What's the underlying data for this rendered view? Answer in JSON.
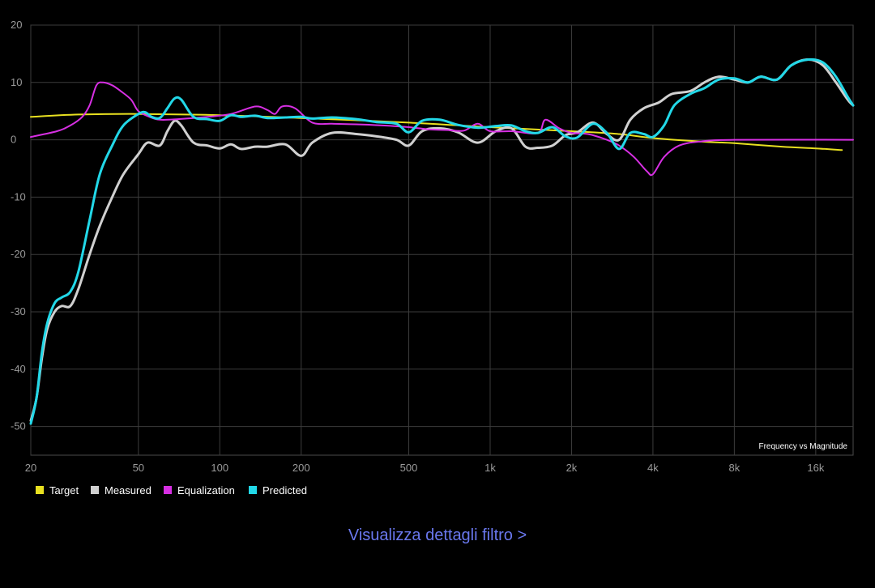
{
  "chart_data": {
    "type": "line",
    "annotation": "Frequency vs Magnitude",
    "x_scale": "log",
    "xlim": [
      20,
      22000
    ],
    "ylim": [
      -55,
      20
    ],
    "x_ticks": [
      {
        "value": 20,
        "label": "20"
      },
      {
        "value": 50,
        "label": "50"
      },
      {
        "value": 100,
        "label": "100"
      },
      {
        "value": 200,
        "label": "200"
      },
      {
        "value": 500,
        "label": "500"
      },
      {
        "value": 1000,
        "label": "1k"
      },
      {
        "value": 2000,
        "label": "2k"
      },
      {
        "value": 4000,
        "label": "4k"
      },
      {
        "value": 8000,
        "label": "8k"
      },
      {
        "value": 16000,
        "label": "16k"
      }
    ],
    "y_ticks": [
      {
        "value": 20,
        "label": "20"
      },
      {
        "value": 10,
        "label": "10"
      },
      {
        "value": 0,
        "label": "0"
      },
      {
        "value": -10,
        "label": "-10"
      },
      {
        "value": -20,
        "label": "-20"
      },
      {
        "value": -30,
        "label": "-30"
      },
      {
        "value": -40,
        "label": "-40"
      },
      {
        "value": -50,
        "label": "-50"
      }
    ],
    "grid": true,
    "legend_position": "bottom-left",
    "series": [
      {
        "name": "Target",
        "color": "#e8e020",
        "points": [
          [
            20,
            4.0
          ],
          [
            30,
            4.4
          ],
          [
            50,
            4.5
          ],
          [
            100,
            4.3
          ],
          [
            200,
            3.8
          ],
          [
            500,
            3.0
          ],
          [
            1000,
            2.2
          ],
          [
            2000,
            1.5
          ],
          [
            3000,
            1.0
          ],
          [
            4000,
            0.3
          ],
          [
            6000,
            -0.3
          ],
          [
            8000,
            -0.6
          ],
          [
            12000,
            -1.2
          ],
          [
            16000,
            -1.5
          ],
          [
            20000,
            -1.8
          ]
        ]
      },
      {
        "name": "Measured",
        "color": "#d0d0d0",
        "points": [
          [
            20,
            -49
          ],
          [
            21,
            -45
          ],
          [
            22,
            -38
          ],
          [
            23,
            -33
          ],
          [
            24.5,
            -30
          ],
          [
            26,
            -29
          ],
          [
            28,
            -29
          ],
          [
            30,
            -26
          ],
          [
            33,
            -20
          ],
          [
            36,
            -15
          ],
          [
            40,
            -10
          ],
          [
            44,
            -6
          ],
          [
            50,
            -2.5
          ],
          [
            54,
            -0.5
          ],
          [
            60,
            -1
          ],
          [
            64,
            1.5
          ],
          [
            68,
            3.3
          ],
          [
            72,
            2.5
          ],
          [
            80,
            -0.5
          ],
          [
            90,
            -1
          ],
          [
            100,
            -1.5
          ],
          [
            110,
            -0.8
          ],
          [
            120,
            -1.6
          ],
          [
            135,
            -1.2
          ],
          [
            150,
            -1.2
          ],
          [
            175,
            -0.8
          ],
          [
            200,
            -2.8
          ],
          [
            220,
            -0.5
          ],
          [
            260,
            1.2
          ],
          [
            320,
            1
          ],
          [
            380,
            0.6
          ],
          [
            450,
            0
          ],
          [
            500,
            -1
          ],
          [
            560,
            1.5
          ],
          [
            650,
            2
          ],
          [
            760,
            1.3
          ],
          [
            900,
            -0.5
          ],
          [
            1050,
            1.5
          ],
          [
            1200,
            2
          ],
          [
            1350,
            -1.2
          ],
          [
            1500,
            -1.4
          ],
          [
            1700,
            -1
          ],
          [
            1900,
            0.8
          ],
          [
            2100,
            1.3
          ],
          [
            2400,
            3
          ],
          [
            2700,
            1
          ],
          [
            3000,
            0
          ],
          [
            3300,
            3.5
          ],
          [
            3700,
            5.5
          ],
          [
            4200,
            6.5
          ],
          [
            4700,
            8.0
          ],
          [
            5500,
            8.5
          ],
          [
            6200,
            10
          ],
          [
            7000,
            11
          ],
          [
            8000,
            10.5
          ],
          [
            9000,
            10
          ],
          [
            10000,
            11
          ],
          [
            11500,
            10.5
          ],
          [
            13000,
            13
          ],
          [
            15000,
            14
          ],
          [
            17000,
            13
          ],
          [
            19000,
            10
          ],
          [
            21000,
            7
          ],
          [
            22000,
            6
          ]
        ]
      },
      {
        "name": "Equalization",
        "color": "#d72fe3",
        "points": [
          [
            20,
            0.5
          ],
          [
            25,
            1.5
          ],
          [
            28,
            2.5
          ],
          [
            31,
            4
          ],
          [
            33,
            6
          ],
          [
            35,
            9.5
          ],
          [
            37,
            10
          ],
          [
            40,
            9.5
          ],
          [
            43,
            8.5
          ],
          [
            47,
            7
          ],
          [
            50,
            5
          ],
          [
            55,
            4
          ],
          [
            60,
            3.5
          ],
          [
            70,
            3.6
          ],
          [
            90,
            4
          ],
          [
            110,
            4.5
          ],
          [
            135,
            5.8
          ],
          [
            150,
            5.2
          ],
          [
            160,
            4.5
          ],
          [
            170,
            5.8
          ],
          [
            190,
            5.5
          ],
          [
            220,
            3
          ],
          [
            260,
            2.8
          ],
          [
            320,
            2.7
          ],
          [
            400,
            2.5
          ],
          [
            500,
            2.2
          ],
          [
            600,
            1.8
          ],
          [
            700,
            1.7
          ],
          [
            800,
            1.6
          ],
          [
            900,
            2.8
          ],
          [
            1000,
            1.5
          ],
          [
            1200,
            1.5
          ],
          [
            1500,
            1.2
          ],
          [
            1600,
            3.5
          ],
          [
            1800,
            2
          ],
          [
            2000,
            1.2
          ],
          [
            2300,
            1
          ],
          [
            2700,
            0
          ],
          [
            3000,
            -1
          ],
          [
            3400,
            -3
          ],
          [
            3800,
            -5.5
          ],
          [
            4000,
            -6
          ],
          [
            4400,
            -3
          ],
          [
            5000,
            -1
          ],
          [
            6000,
            -0.3
          ],
          [
            8000,
            0
          ],
          [
            22000,
            0
          ]
        ]
      },
      {
        "name": "Predicted",
        "color": "#22d8e8",
        "points": [
          [
            20,
            -49.5
          ],
          [
            21,
            -45
          ],
          [
            22,
            -37
          ],
          [
            23,
            -32
          ],
          [
            24.5,
            -28.5
          ],
          [
            26,
            -27.5
          ],
          [
            28,
            -26.5
          ],
          [
            30,
            -23
          ],
          [
            33,
            -14
          ],
          [
            36,
            -6
          ],
          [
            40,
            -1
          ],
          [
            44,
            2.5
          ],
          [
            50,
            4.5
          ],
          [
            53,
            4.8
          ],
          [
            56,
            4
          ],
          [
            60,
            3.8
          ],
          [
            64,
            5.5
          ],
          [
            68,
            7.2
          ],
          [
            72,
            7
          ],
          [
            80,
            4
          ],
          [
            90,
            3.6
          ],
          [
            100,
            3.3
          ],
          [
            110,
            4.3
          ],
          [
            120,
            4
          ],
          [
            135,
            4.2
          ],
          [
            150,
            3.8
          ],
          [
            175,
            3.9
          ],
          [
            200,
            4
          ],
          [
            220,
            3.7
          ],
          [
            260,
            3.9
          ],
          [
            320,
            3.6
          ],
          [
            380,
            3.1
          ],
          [
            450,
            2.8
          ],
          [
            500,
            1.3
          ],
          [
            560,
            3.3
          ],
          [
            650,
            3.5
          ],
          [
            760,
            2.6
          ],
          [
            900,
            2.1
          ],
          [
            1050,
            2.4
          ],
          [
            1200,
            2.5
          ],
          [
            1350,
            1.5
          ],
          [
            1500,
            1.2
          ],
          [
            1700,
            2.2
          ],
          [
            1900,
            0.6
          ],
          [
            2100,
            0.4
          ],
          [
            2400,
            2.8
          ],
          [
            2700,
            1.2
          ],
          [
            3000,
            -1.6
          ],
          [
            3300,
            1.2
          ],
          [
            3700,
            1
          ],
          [
            4000,
            0.5
          ],
          [
            4400,
            2.5
          ],
          [
            4800,
            6
          ],
          [
            5500,
            8
          ],
          [
            6200,
            9
          ],
          [
            7000,
            10.5
          ],
          [
            8000,
            10.7
          ],
          [
            9000,
            10
          ],
          [
            10000,
            11
          ],
          [
            11500,
            10.5
          ],
          [
            13000,
            13
          ],
          [
            15000,
            14
          ],
          [
            17000,
            13.5
          ],
          [
            19000,
            11
          ],
          [
            21000,
            7.5
          ],
          [
            22000,
            6
          ]
        ]
      }
    ]
  },
  "details_link": "Visualizza dettagli filtro >"
}
